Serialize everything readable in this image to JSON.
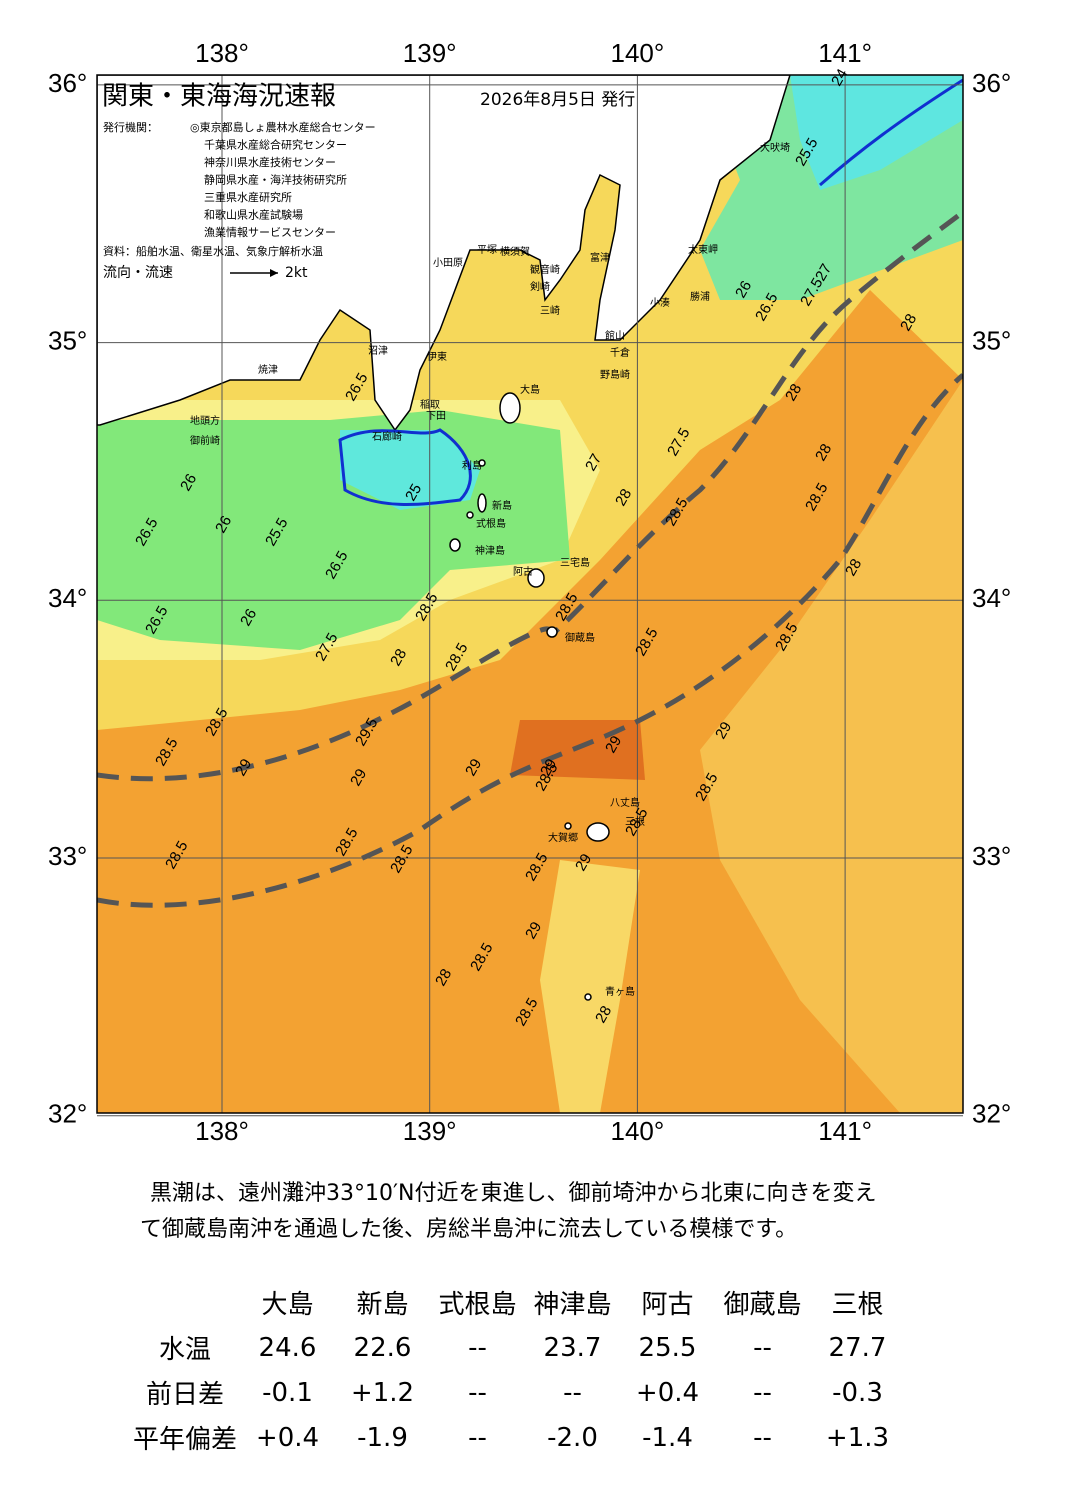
{
  "map": {
    "title": "関東・東海海況速報",
    "date": "2026年8月5日 発行",
    "issuer_label": "発行機関：",
    "issuers": [
      "◎東京都島しょ農林水産総合センター",
      "千葉県水産総合研究センター",
      "神奈川県水産技術センター",
      "静岡県水産・海洋技術研究所",
      "三重県水産研究所",
      "和歌山県水産試験場",
      "漁業情報サービスセンター"
    ],
    "source": "資料：船舶水温、衛星水温、気象庁解析水温",
    "current_legend": "流向・流速",
    "current_scale": "2kt",
    "lon_ticks": [
      {
        "value": 138,
        "label": "138°"
      },
      {
        "value": 139,
        "label": "139°"
      },
      {
        "value": 140,
        "label": "140°"
      },
      {
        "value": 141,
        "label": "141°"
      }
    ],
    "lat_ticks": [
      {
        "value": 32,
        "label": "32°"
      },
      {
        "value": 33,
        "label": "33°"
      },
      {
        "value": 34,
        "label": "34°"
      },
      {
        "value": 35,
        "label": "35°"
      },
      {
        "value": 36,
        "label": "36°"
      }
    ],
    "places": [
      "大吠埼",
      "太東岬",
      "勝浦",
      "小湊",
      "館山",
      "千倉",
      "野島崎",
      "小田原",
      "平塚",
      "横須賀",
      "観音崎",
      "剣崎",
      "三崎",
      "富津",
      "沼津",
      "伊東",
      "焼津",
      "稲取",
      "下田",
      "石廊崎",
      "地頭方",
      "御前崎",
      "大島",
      "利島",
      "新島",
      "式根島",
      "神津島",
      "三宅島",
      "阿古",
      "御蔵島",
      "八丈島",
      "三根",
      "大賀郷",
      "青ヶ島"
    ],
    "contour_labels": [
      "24",
      "25.5",
      "26",
      "26.5",
      "27.5",
      "27",
      "28",
      "28",
      "26.5",
      "26",
      "25.5",
      "26",
      "26.5",
      "26.5",
      "26",
      "25",
      "26.5",
      "27",
      "27.5",
      "28",
      "28.5",
      "28.5",
      "27.5",
      "28",
      "28.5",
      "28.5",
      "28.5",
      "28.5",
      "29",
      "29.5",
      "29",
      "29",
      "29",
      "29",
      "28.5",
      "28.5",
      "28.5",
      "28.5",
      "28.5",
      "28.5",
      "29",
      "28.5",
      "28",
      "29",
      "28.5",
      "28",
      "28.5",
      "28.5",
      "29",
      "28.5",
      "28.5",
      "28",
      "28"
    ],
    "summary": [
      "黒潮は、遠州灘沖33°10′N付近を東進し、御前埼沖から北東に向きを変え",
      "て御蔵島南沖を通過した後、房総半島沖に流去している模様です。"
    ],
    "table": {
      "columns": [
        "大島",
        "新島",
        "式根島",
        "神津島",
        "阿古",
        "御蔵島",
        "三根"
      ],
      "rows": [
        {
          "label": "水温",
          "values": [
            "24.6",
            "22.6",
            "--",
            "23.7",
            "25.5",
            "--",
            "27.7"
          ]
        },
        {
          "label": "前日差",
          "values": [
            "-0.1",
            "+1.2",
            "--",
            "--",
            "+0.4",
            "--",
            "-0.3"
          ]
        },
        {
          "label": "平年偏差",
          "values": [
            "+0.4",
            "-1.9",
            "--",
            "-2.0",
            "-1.4",
            "--",
            "+1.3"
          ]
        }
      ]
    }
  }
}
